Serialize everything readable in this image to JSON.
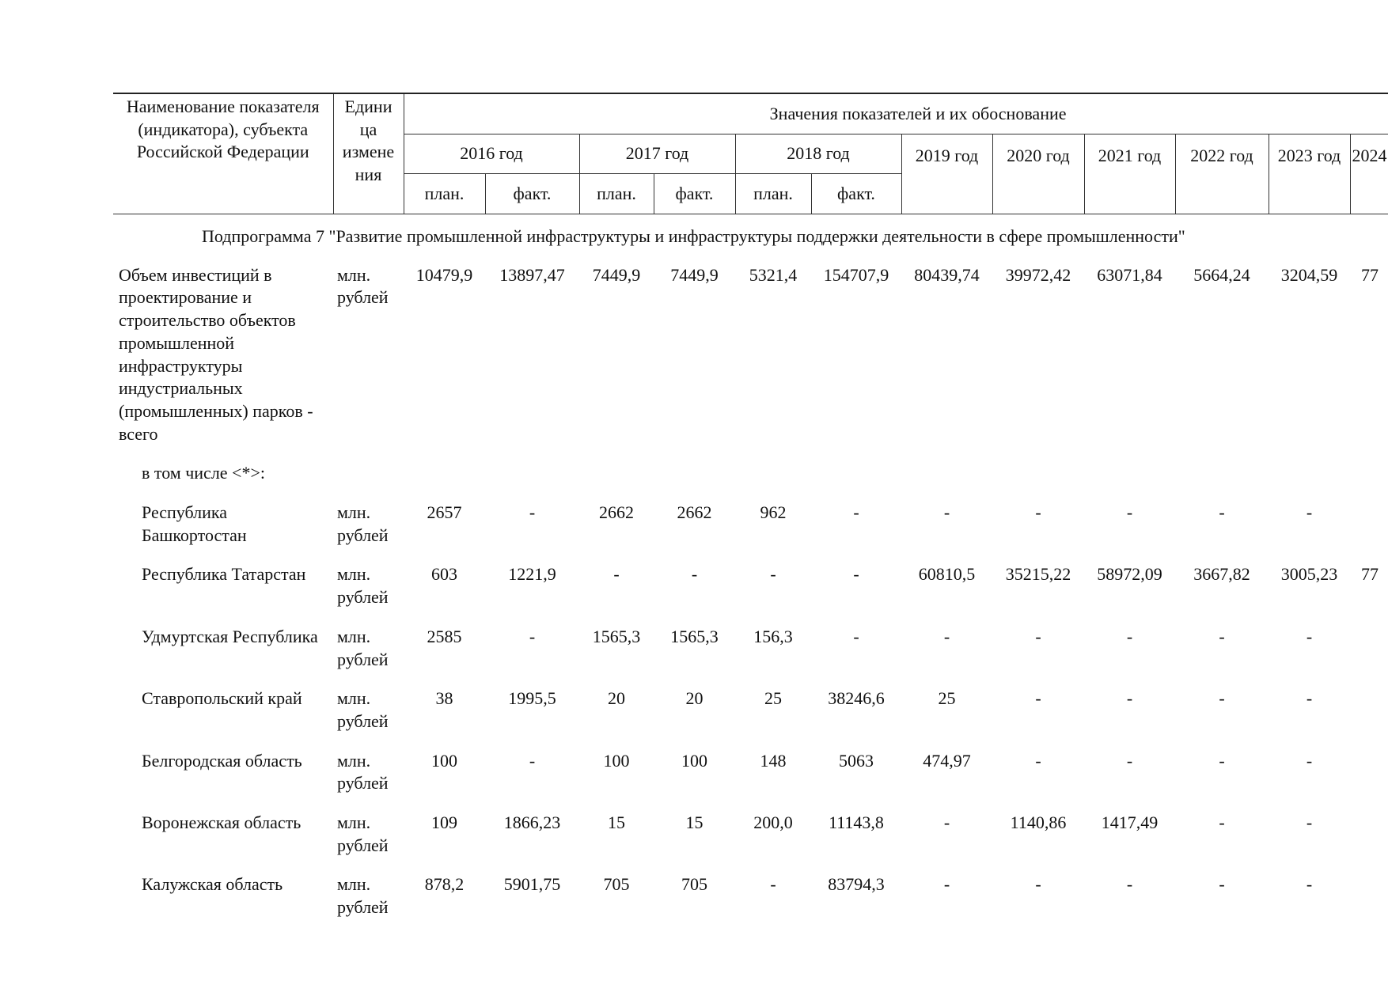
{
  "header": {
    "name_col": "Наименование показателя (индикатора), субъекта Российской Федерации",
    "unit_col": "Едини ца измене ния",
    "values_group": "Значения показателей и их обоснование",
    "years": [
      "2016 год",
      "2017 год",
      "2018 год",
      "2019 год",
      "2020 год",
      "2021 год",
      "2022 год",
      "2023 год",
      "2024"
    ],
    "plan": "план.",
    "fact": "факт."
  },
  "subprogram_title": "Подпрограмма 7 \"Развитие промышленной инфраструктуры и инфраструктуры поддержки деятельности в сфере промышленности\"",
  "rows": [
    {
      "name": "Объем инвестиций в проектирование и строительство объектов промышленной инфраструктуры индустриальных (промышленных) парков - всего",
      "unit": "млн. рублей",
      "sub": false,
      "values": [
        "10479,9",
        "13897,47",
        "7449,9",
        "7449,9",
        "5321,4",
        "154707,9",
        "80439,74",
        "39972,42",
        "63071,84",
        "5664,24",
        "3204,59",
        "77"
      ]
    },
    {
      "name": "в том числе <*>:",
      "unit": "",
      "sub": true,
      "note": true,
      "values": []
    },
    {
      "name": "Республика Башкортостан",
      "unit": "млн. рублей",
      "sub": true,
      "values": [
        "2657",
        "-",
        "2662",
        "2662",
        "962",
        "-",
        "-",
        "-",
        "-",
        "-",
        "-",
        ""
      ]
    },
    {
      "name": "Республика Татарстан",
      "unit": "млн. рублей",
      "sub": true,
      "values": [
        "603",
        "1221,9",
        "-",
        "-",
        "-",
        "-",
        "60810,5",
        "35215,22",
        "58972,09",
        "3667,82",
        "3005,23",
        "77"
      ]
    },
    {
      "name": "Удмуртская Республика",
      "unit": "млн. рублей",
      "sub": true,
      "values": [
        "2585",
        "-",
        "1565,3",
        "1565,3",
        "156,3",
        "-",
        "-",
        "-",
        "-",
        "-",
        "-",
        ""
      ]
    },
    {
      "name": "Ставропольский край",
      "unit": "млн. рублей",
      "sub": true,
      "values": [
        "38",
        "1995,5",
        "20",
        "20",
        "25",
        "38246,6",
        "25",
        "-",
        "-",
        "-",
        "-",
        ""
      ]
    },
    {
      "name": "Белгородская область",
      "unit": "млн. рублей",
      "sub": true,
      "values": [
        "100",
        "-",
        "100",
        "100",
        "148",
        "5063",
        "474,97",
        "-",
        "-",
        "-",
        "-",
        ""
      ]
    },
    {
      "name": "Воронежская область",
      "unit": "млн. рублей",
      "sub": true,
      "values": [
        "109",
        "1866,23",
        "15",
        "15",
        "200,0",
        "11143,8",
        "-",
        "1140,86",
        "1417,49",
        "-",
        "-",
        ""
      ]
    },
    {
      "name": "Калужская область",
      "unit": "млн. рублей",
      "sub": true,
      "values": [
        "878,2",
        "5901,75",
        "705",
        "705",
        "-",
        "83794,3",
        "-",
        "-",
        "-",
        "-",
        "-",
        ""
      ]
    }
  ]
}
